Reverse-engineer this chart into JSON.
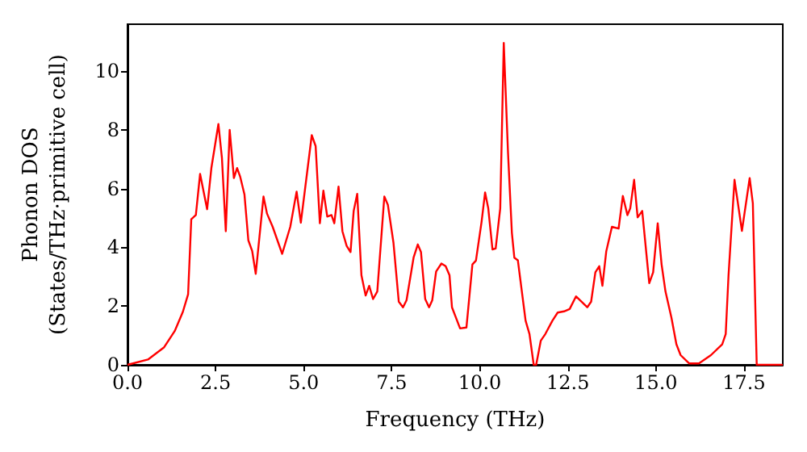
{
  "chart_data": {
    "type": "line",
    "xlabel": "Frequency (THz)",
    "ylabel": "Phonon DOS\n(States/THz·primitive cell)",
    "xlim": [
      0,
      18.6
    ],
    "ylim": [
      0,
      11.6
    ],
    "xticks": [
      {
        "value": 0,
        "label": "0.0"
      },
      {
        "value": 2.5,
        "label": "2.5"
      },
      {
        "value": 5,
        "label": "5.0"
      },
      {
        "value": 7.5,
        "label": "7.5"
      },
      {
        "value": 10,
        "label": "10.0"
      },
      {
        "value": 12.5,
        "label": "12.5"
      },
      {
        "value": 15,
        "label": "15.0"
      },
      {
        "value": 17.5,
        "label": "17.5"
      }
    ],
    "yticks": [
      0,
      2,
      4,
      6,
      8,
      10
    ],
    "grid": false,
    "marker": "none",
    "line_style": "solid",
    "series": [
      {
        "color": "#ff0000",
        "x": [
          0,
          0.58,
          1.04,
          1.34,
          1.57,
          1.72,
          1.81,
          1.94,
          2.06,
          2.26,
          2.38,
          2.58,
          2.68,
          2.79,
          2.9,
          3.02,
          3.11,
          3.2,
          3.32,
          3.43,
          3.54,
          3.64,
          3.86,
          3.96,
          4.12,
          4.39,
          4.62,
          4.8,
          4.92,
          5.23,
          5.34,
          5.46,
          5.56,
          5.67,
          5.79,
          5.87,
          5.99,
          6.1,
          6.22,
          6.33,
          6.42,
          6.52,
          6.64,
          6.76,
          6.86,
          6.97,
          7.09,
          7.29,
          7.39,
          7.55,
          7.7,
          7.82,
          7.92,
          8.12,
          8.24,
          8.33,
          8.45,
          8.56,
          8.65,
          8.76,
          8.91,
          9.03,
          9.14,
          9.21,
          9.44,
          9.62,
          9.79,
          9.89,
          10.05,
          10.15,
          10.24,
          10.36,
          10.45,
          10.58,
          10.68,
          10.8,
          10.91,
          10.98,
          11.08,
          11.3,
          11.41,
          11.53,
          11.6,
          11.73,
          11.86,
          12.06,
          12.21,
          12.39,
          12.55,
          12.73,
          12.89,
          13.05,
          13.16,
          13.28,
          13.39,
          13.48,
          13.59,
          13.75,
          13.94,
          14.06,
          14.19,
          14.27,
          14.38,
          14.48,
          14.61,
          14.81,
          14.92,
          15.05,
          15.16,
          15.27,
          15.44,
          15.58,
          15.7,
          15.94,
          16.22,
          16.56,
          16.88,
          16.98,
          17.06,
          17.23,
          17.44,
          17.66,
          17.75,
          17.86,
          18.6
        ],
        "values": [
          0,
          0.18,
          0.6,
          1.15,
          1.8,
          2.4,
          4.96,
          5.1,
          6.5,
          5.3,
          6.7,
          8.2,
          7.05,
          4.55,
          8.0,
          6.36,
          6.7,
          6.4,
          5.8,
          4.24,
          3.87,
          3.1,
          5.73,
          5.15,
          4.7,
          3.78,
          4.7,
          5.9,
          4.84,
          7.82,
          7.45,
          4.82,
          5.93,
          5.05,
          5.1,
          4.82,
          6.07,
          4.55,
          4.05,
          3.84,
          5.24,
          5.82,
          3.05,
          2.36,
          2.69,
          2.24,
          2.5,
          5.73,
          5.45,
          4.15,
          2.15,
          1.96,
          2.2,
          3.65,
          4.1,
          3.84,
          2.24,
          1.96,
          2.2,
          3.18,
          3.45,
          3.36,
          3.05,
          1.96,
          1.24,
          1.27,
          3.42,
          3.55,
          4.87,
          5.87,
          5.33,
          3.93,
          3.96,
          5.33,
          10.96,
          7.24,
          4.5,
          3.65,
          3.56,
          1.5,
          1.05,
          0,
          0,
          0.82,
          1.05,
          1.5,
          1.78,
          1.82,
          1.9,
          2.33,
          2.15,
          1.96,
          2.15,
          3.15,
          3.36,
          2.69,
          3.87,
          4.7,
          4.64,
          5.75,
          5.1,
          5.33,
          6.3,
          5.02,
          5.24,
          2.78,
          3.15,
          4.82,
          3.42,
          2.5,
          1.6,
          0.7,
          0.33,
          0.05,
          0.05,
          0.33,
          0.7,
          1.05,
          3.05,
          6.3,
          4.56,
          6.36,
          5.5,
          0,
          0
        ]
      }
    ]
  }
}
